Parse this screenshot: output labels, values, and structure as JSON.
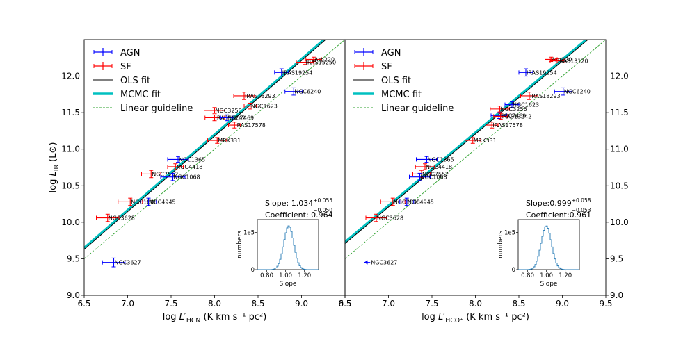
{
  "chart_data": [
    {
      "type": "scatter",
      "panel": "left",
      "xlabel": "log L′HCN (K km s⁻¹ pc²)",
      "xlabel_parts": {
        "pre": "log ",
        "sym": "L′",
        "sub": "HCN",
        "post": " (K km s⁻¹ pc²)"
      },
      "ylabel_parts": {
        "pre": "log ",
        "sym": "L",
        "sub": "IR",
        "post": " (L⊙)"
      },
      "xlim": [
        6.5,
        9.5
      ],
      "ylim": [
        9.0,
        12.5
      ],
      "xticks": [
        "6.5",
        "7.0",
        "7.5",
        "8.0",
        "8.5",
        "9.0",
        "9.5"
      ],
      "yticks": [
        "9.0",
        "9.5",
        "10.0",
        "10.5",
        "11.0",
        "11.5",
        "12.0"
      ],
      "legend": {
        "position": "top-left",
        "entries": [
          {
            "label": "AGN",
            "kind": "errorbar",
            "color": "#0000ff"
          },
          {
            "label": "SF",
            "kind": "errorbar",
            "color": "#ff0000"
          },
          {
            "label": "OLS fit",
            "kind": "line",
            "color": "#000000"
          },
          {
            "label": "MCMC fit",
            "kind": "band",
            "color": "#00c0c0"
          },
          {
            "label": "Linear guideline",
            "kind": "dashed",
            "color": "#2ca02c"
          }
        ]
      },
      "fits": {
        "ols": {
          "slope": 1.034,
          "intercept": 2.907
        },
        "mcmc": {
          "slope": 1.034,
          "intercept": 2.927
        },
        "guideline": {
          "slope": 1.0,
          "intercept": 3.0
        }
      },
      "slope_text": {
        "label": "Slope: ",
        "value": "1.034",
        "plus": "+0.055",
        "minus": "−0.050"
      },
      "coef_text": "Coefficient: 0.964",
      "inset": {
        "xlabel": "Slope",
        "ylabel": "numbers",
        "xticks": [
          "0.80",
          "1.00",
          "1.20"
        ],
        "yticks": [
          "0",
          "1e5"
        ],
        "xlim": [
          0.7,
          1.35
        ],
        "ymax": 1.35,
        "peak": 1.034,
        "sigma": 0.053
      },
      "points": [
        {
          "name": "Arp220",
          "type": "SF",
          "x": 9.14,
          "y": 12.23,
          "xerr": [
            0.09,
            0.09
          ],
          "yerr": 0.03
        },
        {
          "name": "IRAS15250",
          "type": "SF",
          "x": 9.04,
          "y": 12.19,
          "xerr": [
            0.1,
            0.1
          ],
          "yerr": 0.03
        },
        {
          "name": "IRAS19254",
          "type": "AGN",
          "x": 8.77,
          "y": 12.05,
          "xerr": [
            0.08,
            0.08
          ],
          "yerr": 0.05
        },
        {
          "name": "NGC6240",
          "type": "AGN",
          "x": 8.91,
          "y": 11.79,
          "xerr": [
            0.1,
            0.1
          ],
          "yerr": 0.05
        },
        {
          "name": "IRAS18293",
          "type": "SF",
          "x": 8.34,
          "y": 11.73,
          "xerr": [
            0.12,
            0.12
          ],
          "yerr": 0.05
        },
        {
          "name": "NGC1623",
          "type": "SF",
          "x": 8.41,
          "y": 11.59,
          "xerr": [
            0.07,
            0.07
          ],
          "yerr": 0.04
        },
        {
          "name": "NGC3256",
          "type": "SF",
          "x": 8.0,
          "y": 11.53,
          "xerr": [
            0.12,
            0.12
          ],
          "yerr": 0.04
        },
        {
          "name": "IRAS13242",
          "type": "SF",
          "x": 8.0,
          "y": 11.43,
          "xerr": [
            0.11,
            0.11
          ],
          "yerr": 0.04
        },
        {
          "name": "NGC7469",
          "type": "AGN",
          "x": 8.14,
          "y": 11.43,
          "xerr": [
            0.07,
            0.07
          ],
          "yerr": 0.04
        },
        {
          "name": "IRAS17578",
          "type": "SF",
          "x": 8.23,
          "y": 11.33,
          "xerr": [
            0.07,
            0.07
          ],
          "yerr": 0.04
        },
        {
          "name": "MRK331",
          "type": "SF",
          "x": 8.03,
          "y": 11.12,
          "xerr": [
            0.11,
            0.11
          ],
          "yerr": 0.04
        },
        {
          "name": "NGC1365",
          "type": "AGN",
          "x": 7.58,
          "y": 10.86,
          "xerr": [
            0.12,
            0.12
          ],
          "yerr": 0.04
        },
        {
          "name": "NGC4418",
          "type": "SF",
          "x": 7.55,
          "y": 10.76,
          "xerr": [
            0.09,
            0.09
          ],
          "yerr": 0.04
        },
        {
          "name": "NGC7552",
          "type": "SF",
          "x": 7.27,
          "y": 10.66,
          "xerr": [
            0.11,
            0.11
          ],
          "yerr": 0.05
        },
        {
          "name": "NGC1068",
          "type": "AGN",
          "x": 7.52,
          "y": 10.62,
          "xerr": [
            0.14,
            0.14
          ],
          "yerr": 0.05
        },
        {
          "name": "NGC1808",
          "type": "SF",
          "x": 7.03,
          "y": 10.28,
          "xerr": [
            0.14,
            0.14
          ],
          "yerr": 0.05
        },
        {
          "name": "NGC4945",
          "type": "AGN",
          "x": 7.24,
          "y": 10.28,
          "xerr": [
            0.09,
            0.09
          ],
          "yerr": 0.05
        },
        {
          "name": "NGC3628",
          "type": "SF",
          "x": 6.77,
          "y": 10.06,
          "xerr": [
            0.13,
            0.13
          ],
          "yerr": 0.05
        },
        {
          "name": "NGC3627",
          "type": "AGN",
          "x": 6.84,
          "y": 9.45,
          "xerr": [
            0.13,
            0.13
          ],
          "yerr": 0.06
        }
      ]
    },
    {
      "type": "scatter",
      "panel": "right",
      "xlabel": "log L′HCO⁺ (K km s⁻¹ pc²)",
      "xlabel_parts": {
        "pre": "log ",
        "sym": "L′",
        "sub": "HCO⁺",
        "post": " (K km s⁻¹ pc²)"
      },
      "xlim": [
        6.5,
        9.5
      ],
      "ylim": [
        9.0,
        12.5
      ],
      "xticks": [
        "6.5",
        "7.0",
        "7.5",
        "8.0",
        "8.5",
        "9.0",
        "9.5"
      ],
      "yticks": [
        "9.0",
        "9.5",
        "10.0",
        "10.5",
        "11.0",
        "11.5",
        "12.0"
      ],
      "legend": {
        "position": "top-left",
        "entries": [
          {
            "label": "AGN",
            "kind": "errorbar",
            "color": "#0000ff"
          },
          {
            "label": "SF",
            "kind": "errorbar",
            "color": "#ff0000"
          },
          {
            "label": "OLS fit",
            "kind": "line",
            "color": "#000000"
          },
          {
            "label": "MCMC fit",
            "kind": "band",
            "color": "#00c0c0"
          },
          {
            "label": "Linear guideline",
            "kind": "dashed",
            "color": "#2ca02c"
          }
        ]
      },
      "fits": {
        "ols": {
          "slope": 0.999,
          "intercept": 3.215
        },
        "mcmc": {
          "slope": 0.999,
          "intercept": 3.235
        },
        "guideline": {
          "slope": 1.0,
          "intercept": 3.0
        }
      },
      "slope_text": {
        "label": "Slope:",
        "value": "0.999",
        "plus": "+0.058",
        "minus": "−0.053"
      },
      "coef_text": "Coefficient:0.961",
      "inset": {
        "xlabel": "Slope",
        "ylabel": "numbers",
        "xticks": [
          "0.80",
          "1.00",
          "1.20"
        ],
        "yticks": [
          "0",
          "1e5"
        ],
        "xlim": [
          0.7,
          1.35
        ],
        "ymax": 1.35,
        "peak": 0.999,
        "sigma": 0.055
      },
      "points": [
        {
          "name": "Arp220",
          "type": "SF",
          "x": 8.87,
          "y": 12.23,
          "xerr": [
            0.07,
            0.07
          ],
          "yerr": 0.03
        },
        {
          "name": "IRAS13120",
          "type": "SF",
          "x": 8.94,
          "y": 12.21,
          "xerr": [
            0.08,
            0.08
          ],
          "yerr": 0.03
        },
        {
          "name": "IRAS19254",
          "type": "AGN",
          "x": 8.58,
          "y": 12.05,
          "xerr": [
            0.08,
            0.08
          ],
          "yerr": 0.05
        },
        {
          "name": "NGC6240",
          "type": "AGN",
          "x": 9.01,
          "y": 11.79,
          "xerr": [
            0.1,
            0.1
          ],
          "yerr": 0.05
        },
        {
          "name": "IRAS18293",
          "type": "SF",
          "x": 8.62,
          "y": 11.73,
          "xerr": [
            0.1,
            0.1
          ],
          "yerr": 0.05
        },
        {
          "name": "NGC1623",
          "type": "AGN",
          "x": 8.42,
          "y": 11.61,
          "xerr": [
            0.08,
            0.08
          ],
          "yerr": 0.04
        },
        {
          "name": "NGC3256",
          "type": "SF",
          "x": 8.28,
          "y": 11.55,
          "xerr": [
            0.11,
            0.11
          ],
          "yerr": 0.04
        },
        {
          "name": "NGC7469",
          "type": "AGN",
          "x": 8.27,
          "y": 11.46,
          "xerr": [
            0.09,
            0.09
          ],
          "yerr": 0.04
        },
        {
          "name": "IRAS13242",
          "type": "SF",
          "x": 8.29,
          "y": 11.45,
          "xerr": [
            0.08,
            0.08
          ],
          "yerr": 0.04
        },
        {
          "name": "IRAS17578",
          "type": "SF",
          "x": 8.19,
          "y": 11.33,
          "xerr": [
            0.07,
            0.07
          ],
          "yerr": 0.04
        },
        {
          "name": "MRK331",
          "type": "SF",
          "x": 7.97,
          "y": 11.12,
          "xerr": [
            0.09,
            0.09
          ],
          "yerr": 0.04
        },
        {
          "name": "NGC1365",
          "type": "AGN",
          "x": 7.44,
          "y": 10.86,
          "xerr": [
            0.12,
            0.12
          ],
          "yerr": 0.04
        },
        {
          "name": "NGC4418",
          "type": "SF",
          "x": 7.42,
          "y": 10.76,
          "xerr": [
            0.11,
            0.11
          ],
          "yerr": 0.04
        },
        {
          "name": "NGC7552",
          "type": "SF",
          "x": 7.38,
          "y": 10.66,
          "xerr": [
            0.1,
            0.1
          ],
          "yerr": 0.05
        },
        {
          "name": "NGC1068",
          "type": "AGN",
          "x": 7.36,
          "y": 10.62,
          "xerr": [
            0.12,
            0.12
          ],
          "yerr": 0.05
        },
        {
          "name": "NGC1808",
          "type": "SF",
          "x": 7.05,
          "y": 10.28,
          "xerr": [
            0.14,
            0.14
          ],
          "yerr": 0.05
        },
        {
          "name": "NGC4945",
          "type": "AGN",
          "x": 7.21,
          "y": 10.28,
          "xerr": [
            0.08,
            0.08
          ],
          "yerr": 0.05
        },
        {
          "name": "NGC3628",
          "type": "SF",
          "x": 6.86,
          "y": 10.06,
          "xerr": [
            0.12,
            0.12
          ],
          "yerr": 0.05
        },
        {
          "name": "NGC3627",
          "type": "AGN",
          "x": 6.79,
          "y": 9.45,
          "xerr": [
            0.07,
            0
          ],
          "yerr": 0,
          "upper_limit": true
        }
      ]
    }
  ]
}
